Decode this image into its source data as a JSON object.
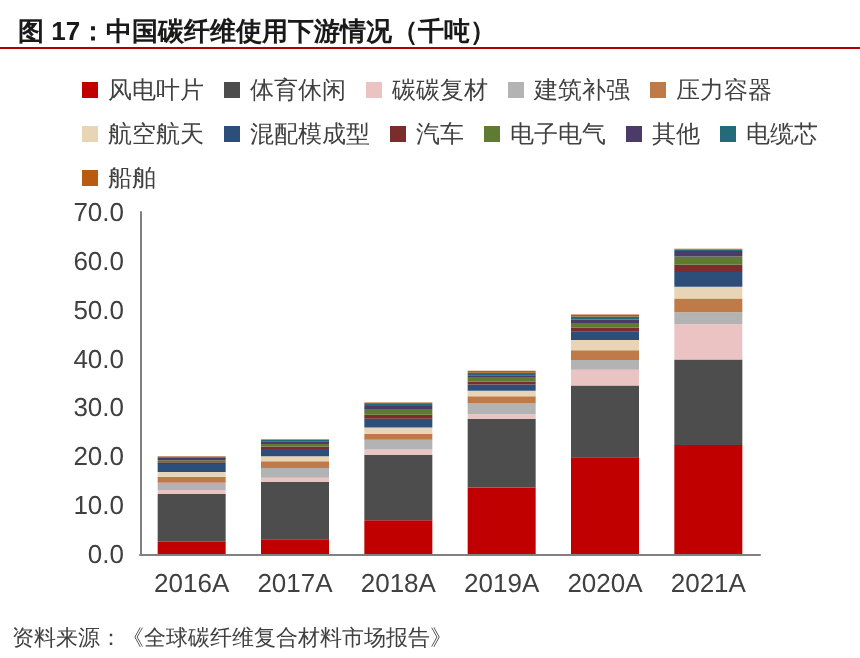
{
  "chart_data": {
    "type": "bar",
    "stacked": true,
    "title": "图 17：中国碳纤维使用下游情况（千吨）",
    "categories": [
      "2016A",
      "2017A",
      "2018A",
      "2019A",
      "2020A",
      "2021A"
    ],
    "series": [
      {
        "name": "风电叶片",
        "color": "#c00000",
        "values": [
          2.5,
          3.0,
          6.9,
          13.6,
          19.8,
          22.3
        ]
      },
      {
        "name": "体育休闲",
        "color": "#4d4d4d",
        "values": [
          9.8,
          11.8,
          13.4,
          14.1,
          14.7,
          17.5
        ]
      },
      {
        "name": "碳碳复材",
        "color": "#ebc3c3",
        "values": [
          0.8,
          0.8,
          1.1,
          0.9,
          3.2,
          7.2
        ]
      },
      {
        "name": "建筑补强",
        "color": "#b3b3b3",
        "values": [
          1.5,
          2.0,
          2.0,
          2.2,
          2.0,
          2.5
        ]
      },
      {
        "name": "压力容器",
        "color": "#c07a48",
        "values": [
          1.2,
          1.4,
          1.2,
          1.5,
          2.0,
          2.8
        ]
      },
      {
        "name": "航空航天",
        "color": "#e8d5b5",
        "values": [
          1.0,
          1.0,
          1.3,
          1.1,
          2.1,
          2.4
        ]
      },
      {
        "name": "混配模成型",
        "color": "#2e4e7a",
        "values": [
          1.6,
          1.5,
          1.8,
          1.3,
          1.7,
          3.0
        ]
      },
      {
        "name": "汽车",
        "color": "#7b2c2c",
        "values": [
          0.4,
          0.5,
          0.8,
          0.6,
          0.8,
          1.5
        ]
      },
      {
        "name": "电子电气",
        "color": "#5e7a33",
        "values": [
          0.4,
          0.5,
          1.0,
          0.8,
          1.0,
          1.7
        ]
      },
      {
        "name": "其他",
        "color": "#4c3a68",
        "values": [
          0.5,
          0.6,
          0.8,
          0.5,
          0.7,
          1.1
        ]
      },
      {
        "name": "电缆芯",
        "color": "#246b7a",
        "values": [
          0.2,
          0.3,
          0.4,
          0.5,
          0.6,
          0.3
        ]
      },
      {
        "name": "船舶",
        "color": "#b85a10",
        "values": [
          0.1,
          0.1,
          0.3,
          0.4,
          0.4,
          0.2
        ]
      }
    ],
    "ylim": [
      0,
      70
    ],
    "yticks": [
      {
        "value": 0,
        "label": "0.0"
      },
      {
        "value": 10,
        "label": "10.0"
      },
      {
        "value": 20,
        "label": "20.0"
      },
      {
        "value": 30,
        "label": "30.0"
      },
      {
        "value": 40,
        "label": "40.0"
      },
      {
        "value": 50,
        "label": "50.0"
      },
      {
        "value": 60,
        "label": "60.0"
      },
      {
        "value": 70,
        "label": "70.0"
      }
    ],
    "grid": false,
    "legend": "top",
    "annotations": [
      "资料来源：《全球碳纤维复合材料市场报告》"
    ]
  }
}
